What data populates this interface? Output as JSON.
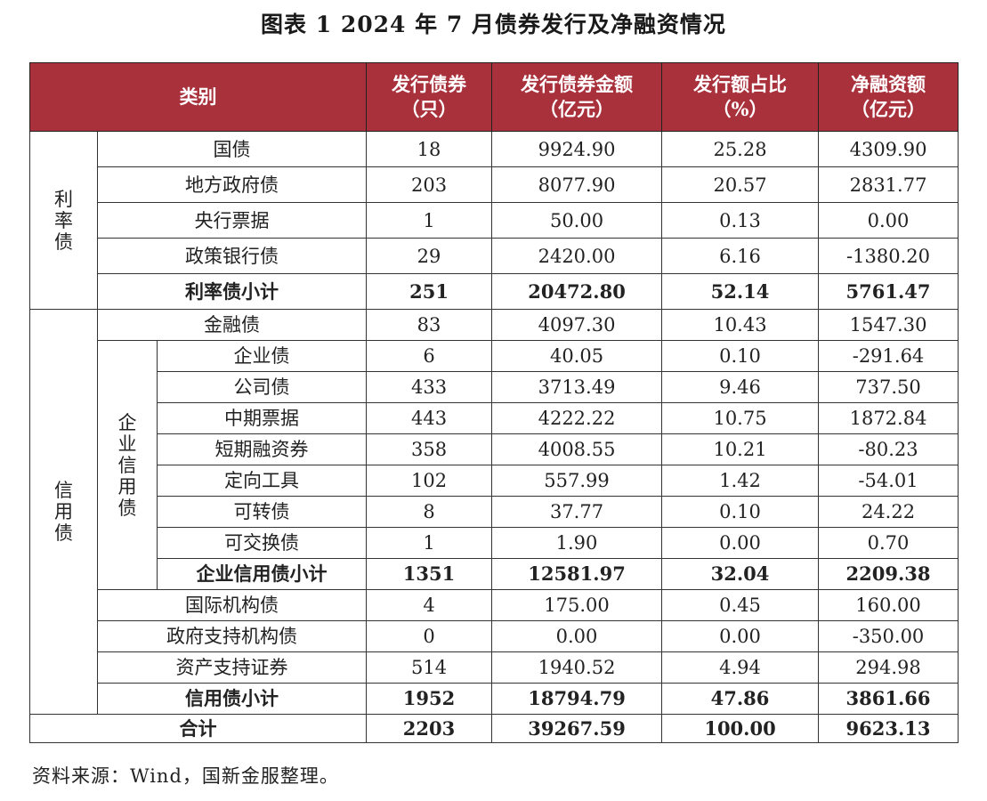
{
  "title": "图表 1 2024 年 7 月债券发行及净融资情况",
  "header": {
    "category": "类别",
    "count": "发行债券（只）",
    "amount": "发行债券金额（亿元）",
    "share": "发行额占比（%）",
    "net": "净融资额（亿元）"
  },
  "groups": {
    "rate": "利率债",
    "credit": "信用债",
    "corporate": "企业信用债"
  },
  "rows": {
    "guozhai": {
      "name": "国债",
      "count": "18",
      "amount": "9924.90",
      "share": "25.28",
      "net": "4309.90"
    },
    "difang": {
      "name": "地方政府债",
      "count": "203",
      "amount": "8077.90",
      "share": "20.57",
      "net": "2831.77"
    },
    "yanghang": {
      "name": "央行票据",
      "count": "1",
      "amount": "50.00",
      "share": "0.13",
      "net": "0.00"
    },
    "zhengce": {
      "name": "政策银行债",
      "count": "29",
      "amount": "2420.00",
      "share": "6.16",
      "net": "-1380.20"
    },
    "rate_sub": {
      "name": "利率债小计",
      "count": "251",
      "amount": "20472.80",
      "share": "52.14",
      "net": "5761.47"
    },
    "jinrong": {
      "name": "金融债",
      "count": "83",
      "amount": "4097.30",
      "share": "10.43",
      "net": "1547.30"
    },
    "qiye": {
      "name": "企业债",
      "count": "6",
      "amount": "40.05",
      "share": "0.10",
      "net": "-291.64"
    },
    "gongsi": {
      "name": "公司债",
      "count": "433",
      "amount": "3713.49",
      "share": "9.46",
      "net": "737.50"
    },
    "zhongqi": {
      "name": "中期票据",
      "count": "443",
      "amount": "4222.22",
      "share": "10.75",
      "net": "1872.84"
    },
    "duanqi": {
      "name": "短期融资券",
      "count": "358",
      "amount": "4008.55",
      "share": "10.21",
      "net": "-80.23"
    },
    "dingxiang": {
      "name": "定向工具",
      "count": "102",
      "amount": "557.99",
      "share": "1.42",
      "net": "-54.01"
    },
    "kezhuan": {
      "name": "可转债",
      "count": "8",
      "amount": "37.77",
      "share": "0.10",
      "net": "24.22"
    },
    "kejiaohuan": {
      "name": "可交换债",
      "count": "1",
      "amount": "1.90",
      "share": "0.00",
      "net": "0.70"
    },
    "corp_sub": {
      "name": "企业信用债小计",
      "count": "1351",
      "amount": "12581.97",
      "share": "32.04",
      "net": "2209.38"
    },
    "guoji": {
      "name": "国际机构债",
      "count": "4",
      "amount": "175.00",
      "share": "0.45",
      "net": "160.00"
    },
    "zhengfuzc": {
      "name": "政府支持机构债",
      "count": "0",
      "amount": "0.00",
      "share": "0.00",
      "net": "-350.00"
    },
    "zichan": {
      "name": "资产支持证券",
      "count": "514",
      "amount": "1940.52",
      "share": "4.94",
      "net": "294.98"
    },
    "credit_sub": {
      "name": "信用债小计",
      "count": "1952",
      "amount": "18794.79",
      "share": "47.86",
      "net": "3861.66"
    },
    "total": {
      "name": "合计",
      "count": "2203",
      "amount": "39267.59",
      "share": "100.00",
      "net": "9623.13"
    }
  },
  "source": "资料来源：Wind，国新金服整理。",
  "colors": {
    "header_bg": "#a8313c",
    "header_text": "#ffffff"
  }
}
